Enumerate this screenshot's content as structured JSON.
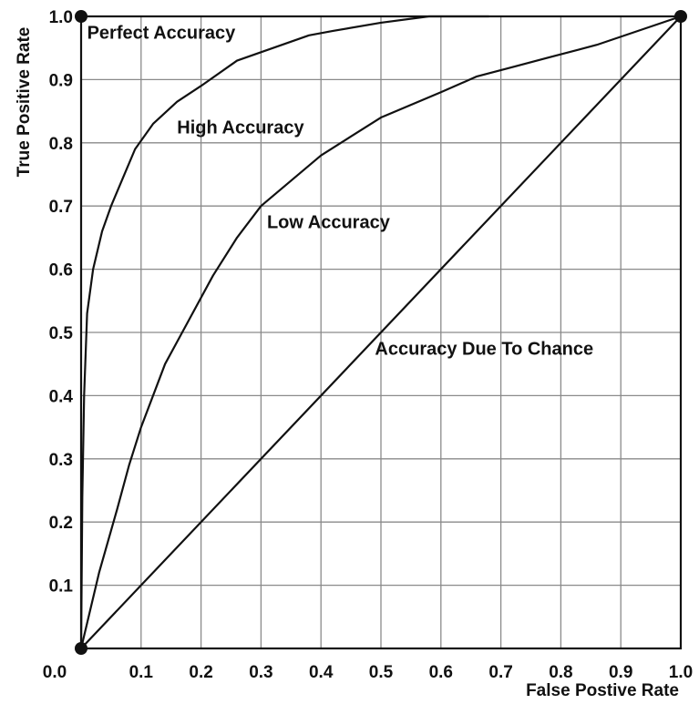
{
  "chart_data": {
    "type": "line",
    "title": "",
    "xlabel": "False Postive Rate",
    "ylabel": "True Positive Rate",
    "xlim": [
      0,
      1
    ],
    "ylim": [
      0,
      1
    ],
    "grid": true,
    "x_ticks": [
      "0.0",
      "0.1",
      "0.2",
      "0.3",
      "0.4",
      "0.5",
      "0.6",
      "0.7",
      "0.8",
      "0.9",
      "1.0"
    ],
    "y_ticks": [
      "0.0",
      "0.1",
      "0.2",
      "0.3",
      "0.4",
      "0.5",
      "0.6",
      "0.7",
      "0.8",
      "0.9",
      "1.0"
    ],
    "series": [
      {
        "x": [
          0,
          0.002,
          0.005,
          0.01,
          0.02,
          0.035,
          0.05,
          0.07,
          0.09,
          0.12,
          0.16,
          0.2,
          0.26,
          0.32,
          0.38,
          0.42,
          0.5,
          0.58,
          0.63,
          0.68
        ],
        "y": [
          0,
          0.24,
          0.4,
          0.53,
          0.6,
          0.66,
          0.7,
          0.745,
          0.79,
          0.83,
          0.865,
          0.89,
          0.93,
          0.95,
          0.97,
          0.977,
          0.99,
          1.0,
          1.0,
          1.0
        ],
        "color": "#111111"
      },
      {
        "x": [
          0,
          0.03,
          0.06,
          0.08,
          0.1,
          0.14,
          0.18,
          0.22,
          0.26,
          0.3,
          0.35,
          0.4,
          0.45,
          0.5,
          0.6,
          0.66,
          0.72,
          0.78,
          0.86,
          1.0
        ],
        "y": [
          0,
          0.12,
          0.22,
          0.29,
          0.35,
          0.45,
          0.52,
          0.59,
          0.65,
          0.7,
          0.74,
          0.78,
          0.81,
          0.84,
          0.88,
          0.905,
          0.92,
          0.935,
          0.955,
          1.0
        ],
        "color": "#111111"
      },
      {
        "x": [
          0,
          1
        ],
        "y": [
          0,
          1
        ],
        "color": "#111111"
      }
    ],
    "points": [
      {
        "x": 0,
        "y": 0
      },
      {
        "x": 0,
        "y": 1
      },
      {
        "x": 1,
        "y": 1
      }
    ],
    "annotations": [
      {
        "text": "Perfect Accuracy",
        "x": 0.01,
        "y": 0.965
      },
      {
        "text": "High Accuracy",
        "x": 0.16,
        "y": 0.815
      },
      {
        "text": "Low Accuracy",
        "x": 0.31,
        "y": 0.665
      },
      {
        "text": "Accuracy Due To Chance",
        "x": 0.49,
        "y": 0.465
      }
    ],
    "colors": {
      "line": "#111111",
      "grid": "#8a8a8a",
      "background": "#ffffff"
    }
  }
}
